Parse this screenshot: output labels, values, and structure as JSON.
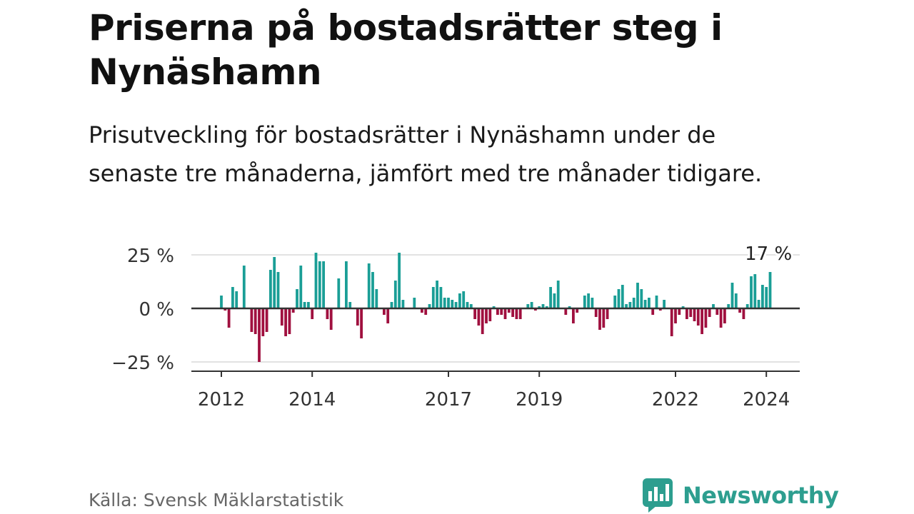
{
  "header": {
    "title": "Priserna på bostadsrätter steg i Nynäshamn",
    "subtitle": "Prisutveckling för bostadsrätter i Nynäshamn under de senaste tre månaderna, jämfört med tre månader tidigare."
  },
  "footer": {
    "source": "Källa: Svensk Mäklarstatistik",
    "brand": "Newsworthy"
  },
  "colors": {
    "positive": "#1a9e96",
    "negative": "#a0103f",
    "brand": "#2d9e8f"
  },
  "chart_data": {
    "type": "bar",
    "title": "Priserna på bostadsrätter steg i Nynäshamn",
    "xlabel": "",
    "ylabel": "",
    "ylim": [
      -30,
      27
    ],
    "y_ticks": [
      25,
      0,
      -25
    ],
    "y_tick_labels": [
      "25 %",
      "0 %",
      "−25 %"
    ],
    "x_tick_labels": [
      "2012",
      "2014",
      "2017",
      "2019",
      "2022",
      "2024"
    ],
    "x_tick_indices": [
      0,
      24,
      60,
      84,
      120,
      144
    ],
    "x_start": "2012-01",
    "frequency": "monthly",
    "annotation": {
      "text": "17 %",
      "index": 144,
      "value": 17
    },
    "values": [
      6,
      -1,
      -9,
      10,
      8,
      0,
      20,
      0,
      -11,
      -12,
      -25,
      -13,
      -11,
      18,
      24,
      17,
      -8,
      -13,
      -12,
      -2,
      9,
      20,
      3,
      3,
      -5,
      26,
      22,
      22,
      -5,
      -10,
      0,
      14,
      0,
      22,
      3,
      0,
      -8,
      -14,
      0,
      21,
      17,
      9,
      0,
      -3,
      -7,
      3,
      13,
      26,
      4,
      0,
      0,
      5,
      0,
      -2,
      -3,
      2,
      10,
      13,
      10,
      5,
      5,
      4,
      3,
      7,
      8,
      3,
      2,
      -5,
      -8,
      -12,
      -7,
      -6,
      1,
      -3,
      -3,
      -5,
      -2,
      -4,
      -5,
      -5,
      0,
      2,
      3,
      -1,
      1,
      2,
      1,
      10,
      7,
      13,
      0,
      -3,
      1,
      -7,
      -2,
      0,
      6,
      7,
      5,
      -4,
      -10,
      -9,
      -5,
      0,
      6,
      9,
      11,
      2,
      3,
      5,
      12,
      9,
      4,
      5,
      -3,
      6,
      -1,
      4,
      0,
      -13,
      -7,
      -3,
      1,
      -5,
      -4,
      -6,
      -8,
      -12,
      -9,
      -4,
      2,
      -3,
      -9,
      -7,
      2,
      12,
      7,
      -2,
      -5,
      2,
      15,
      16,
      4,
      11,
      10,
      17
    ]
  }
}
